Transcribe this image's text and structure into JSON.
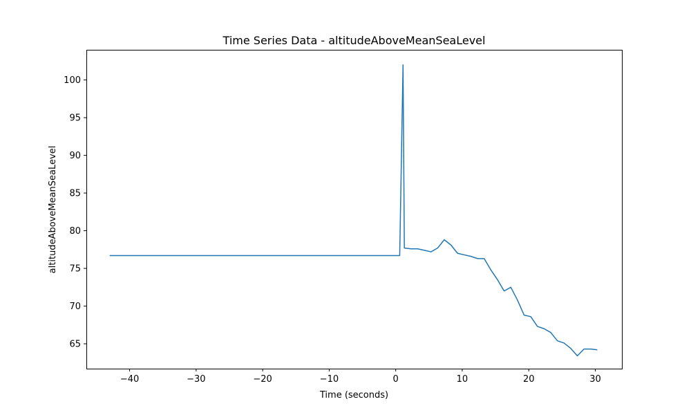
{
  "chart_data": {
    "type": "line",
    "title": "Time Series Data - altitudeAboveMeanSeaLevel",
    "xlabel": "Time (seconds)",
    "ylabel": "altitudeAboveMeanSeaLevel",
    "xlim": [
      -46.5,
      34.0
    ],
    "ylim": [
      61.7,
      104.0
    ],
    "x_ticks": [
      -40,
      -30,
      -20,
      -10,
      0,
      10,
      20,
      30
    ],
    "y_ticks": [
      65,
      70,
      75,
      80,
      85,
      90,
      95,
      100
    ],
    "x_tick_labels": [
      "−40",
      "−30",
      "−20",
      "−10",
      "0",
      "10",
      "20",
      "30"
    ],
    "y_tick_labels": [
      "65",
      "70",
      "75",
      "80",
      "85",
      "90",
      "95",
      "100"
    ],
    "grid": false,
    "legend": "none",
    "series": [
      {
        "color": "#1f77b4",
        "x": [
          -43.0,
          0.6,
          1.1,
          1.3,
          2.3,
          3.3,
          4.3,
          5.3,
          6.3,
          7.3,
          8.3,
          9.3,
          10.3,
          11.3,
          12.3,
          13.3,
          14.3,
          15.3,
          16.3,
          17.3,
          18.3,
          19.3,
          20.3,
          21.3,
          22.3,
          23.3,
          24.3,
          25.3,
          26.3,
          27.3,
          28.3,
          29.3,
          30.3
        ],
        "y": [
          76.7,
          76.7,
          102.0,
          77.7,
          77.6,
          77.6,
          77.4,
          77.2,
          77.7,
          78.8,
          78.1,
          77.0,
          76.8,
          76.6,
          76.3,
          76.3,
          74.8,
          73.5,
          72.0,
          72.5,
          70.8,
          68.8,
          68.6,
          67.3,
          67.0,
          66.5,
          65.4,
          65.1,
          64.4,
          63.4,
          64.3,
          64.3,
          64.2
        ]
      }
    ]
  }
}
